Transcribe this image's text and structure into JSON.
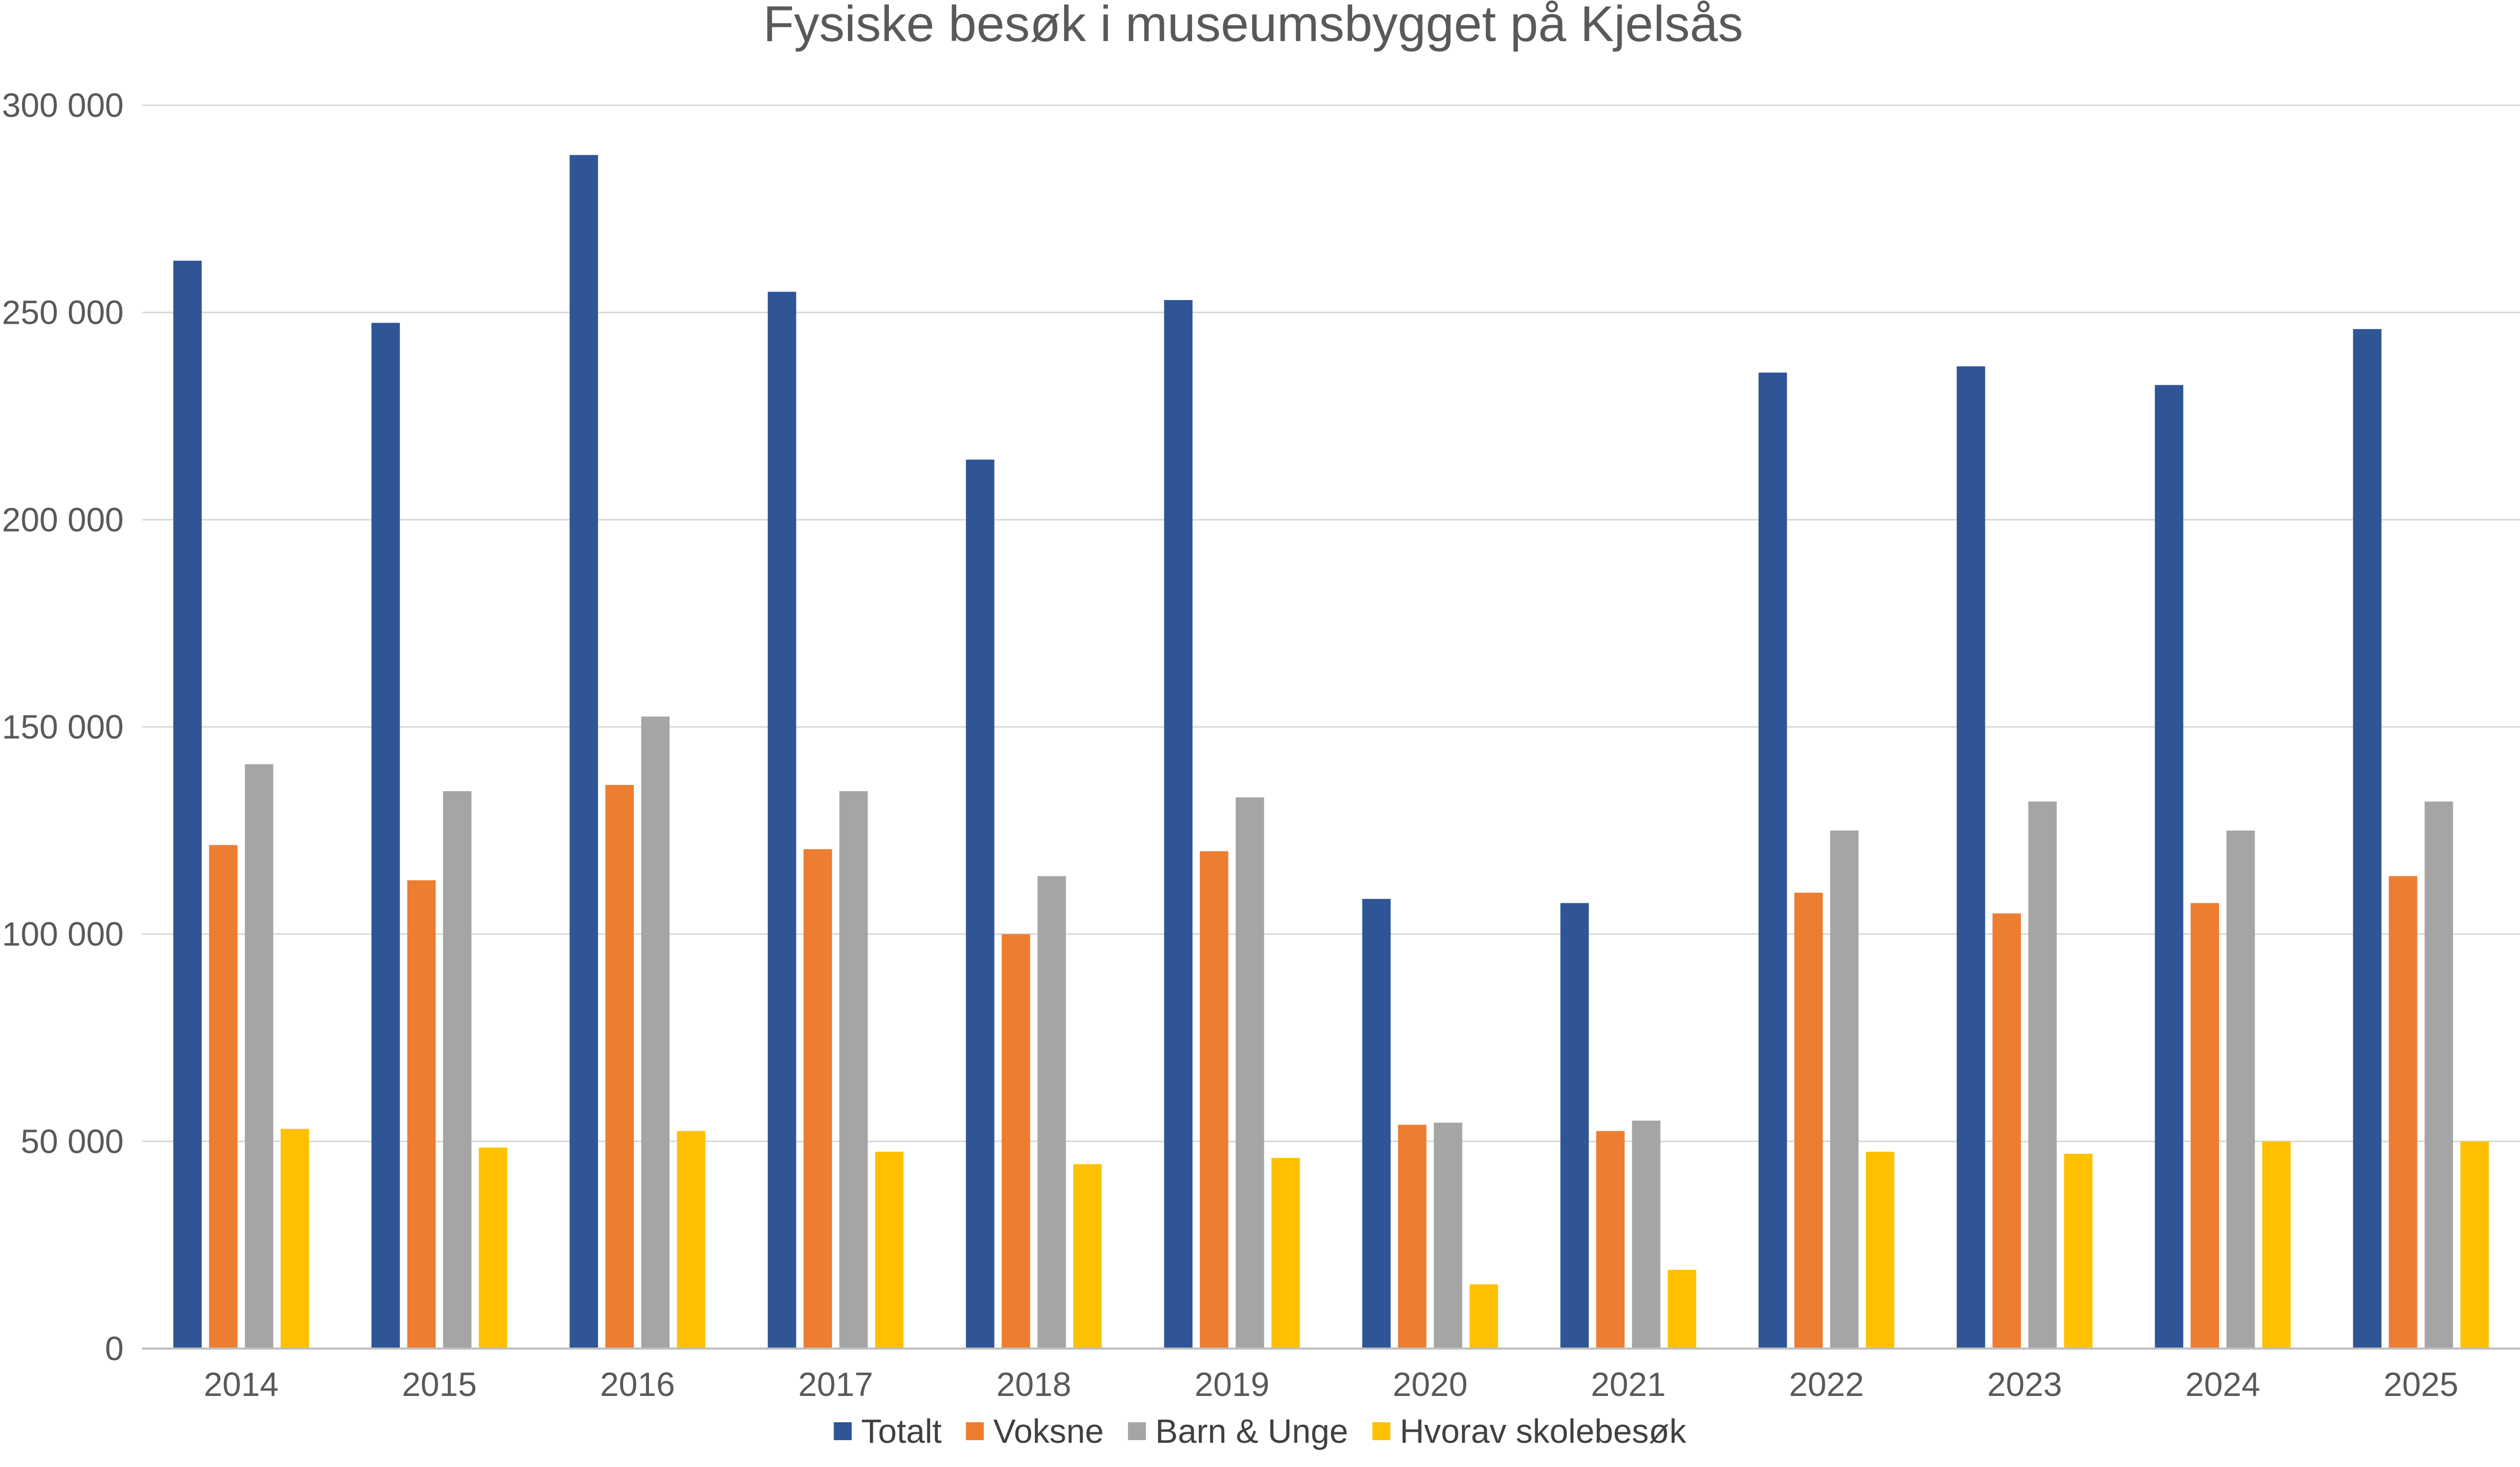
{
  "chart_data": {
    "type": "bar",
    "title": "Fysiske besøk i museumsbygget på Kjelsås",
    "xlabel": "",
    "ylabel": "",
    "ylim": [
      0,
      300000
    ],
    "ytick_values": [
      0,
      50000,
      100000,
      150000,
      200000,
      250000,
      300000
    ],
    "ytick_labels": [
      "0",
      "50 000",
      "100 000",
      "150 000",
      "200 000",
      "250 000",
      "300 000"
    ],
    "grid": true,
    "legend_position": "bottom",
    "categories": [
      "2014",
      "2015",
      "2016",
      "2017",
      "2018",
      "2019",
      "2020",
      "2021",
      "2022",
      "2023",
      "2024",
      "2025"
    ],
    "series": [
      {
        "name": "Totalt",
        "color": "#2f5597",
        "values": [
          262500,
          247500,
          288000,
          255000,
          214500,
          253000,
          108500,
          107500,
          235500,
          237000,
          232500,
          246000
        ]
      },
      {
        "name": "Voksne",
        "color": "#ed7d31",
        "values": [
          121500,
          113000,
          136000,
          120500,
          100000,
          120000,
          54000,
          52500,
          110000,
          105000,
          107500,
          114000
        ]
      },
      {
        "name": "Barn & Unge",
        "color": "#a5a5a5",
        "values": [
          141000,
          134500,
          152500,
          134500,
          114000,
          133000,
          54500,
          55000,
          125000,
          132000,
          125000,
          132000
        ]
      },
      {
        "name": "Hvorav skolebesøk",
        "color": "#ffc000",
        "values": [
          53000,
          48500,
          52500,
          47500,
          44500,
          46000,
          15500,
          19000,
          47500,
          47000,
          50000,
          50000
        ]
      }
    ]
  }
}
